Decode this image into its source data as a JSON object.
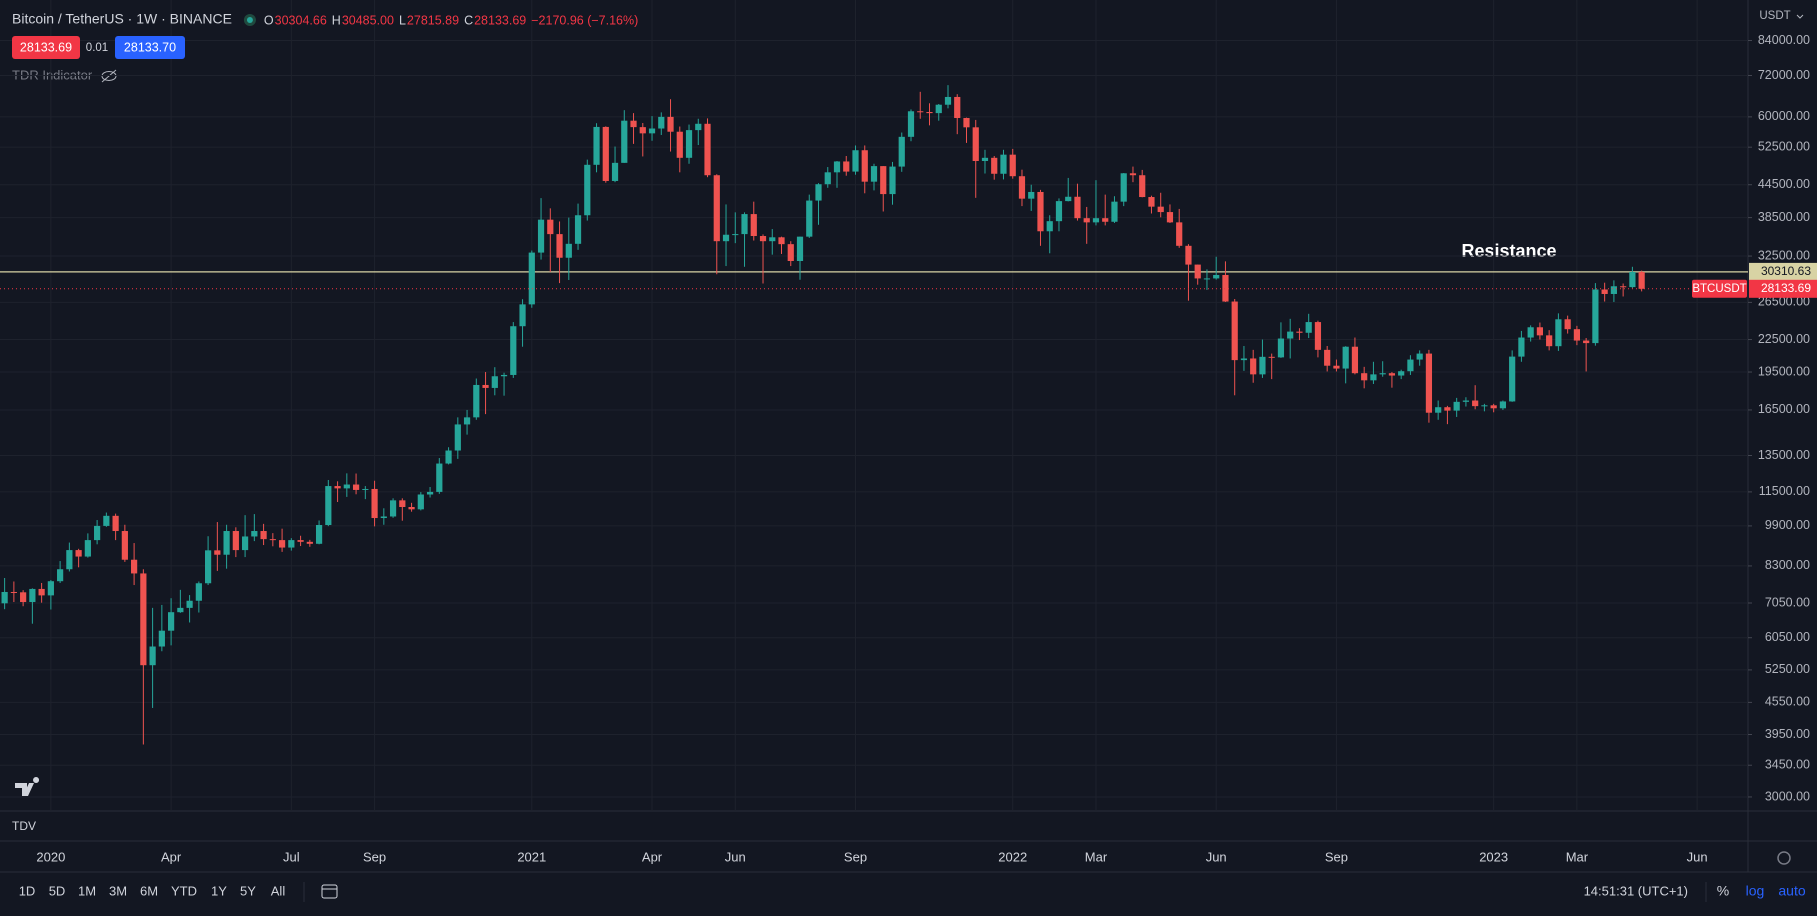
{
  "header": {
    "symbol": "Bitcoin / TetherUS · 1W · BINANCE",
    "ohlc": [
      {
        "k": "O",
        "v": "30304.66"
      },
      {
        "k": "H",
        "v": "30485.00"
      },
      {
        "k": "L",
        "v": "27815.89"
      },
      {
        "k": "C",
        "v": "28133.69"
      }
    ],
    "change": "−2170.96 (−7.16%)",
    "bid": "28133.69",
    "spread": "0.01",
    "ask": "28133.70",
    "indicator": "TDR Indicator",
    "currency": "USDT",
    "pane": "TDV"
  },
  "toolbar": {
    "ranges": [
      "1D",
      "5D",
      "1M",
      "3M",
      "6M",
      "YTD",
      "1Y",
      "5Y",
      "All"
    ],
    "time": "14:51:31 (UTC+1)",
    "scale": [
      "%",
      "log",
      "auto"
    ]
  },
  "chart_data": {
    "type": "candlestick",
    "log_scale": true,
    "grid": true,
    "up_color": "#26a69a",
    "down_color": "#ef5350",
    "annotation": "Resistance",
    "hlines": [
      {
        "value": 30310.63,
        "color": "#d8d3a4"
      }
    ],
    "last": {
      "name": "BTCUSDT",
      "value": 28133.69,
      "color": "#f23645"
    },
    "ylim": [
      2820,
      100400
    ],
    "yticks": [
      {
        "value": 84000,
        "label": "84000.00"
      },
      {
        "value": 72000,
        "label": "72000.00"
      },
      {
        "value": 60000,
        "label": "60000.00"
      },
      {
        "value": 52500,
        "label": "52500.00"
      },
      {
        "value": 44500,
        "label": "44500.00"
      },
      {
        "value": 38500,
        "label": "38500.00"
      },
      {
        "value": 32500,
        "label": "32500.00"
      },
      {
        "value": 26500,
        "label": "26500.00"
      },
      {
        "value": 22500,
        "label": "22500.00"
      },
      {
        "value": 19500,
        "label": "19500.00"
      },
      {
        "value": 16500,
        "label": "16500.00"
      },
      {
        "value": 13500,
        "label": "13500.00"
      },
      {
        "value": 11500,
        "label": "11500.00"
      },
      {
        "value": 9900,
        "label": "9900.00"
      },
      {
        "value": 8300,
        "label": "8300.00"
      },
      {
        "value": 7050,
        "label": "7050.00"
      },
      {
        "value": 6050,
        "label": "6050.00"
      },
      {
        "value": 5250,
        "label": "5250.00"
      },
      {
        "value": 4550,
        "label": "4550.00"
      },
      {
        "value": 3950,
        "label": "3950.00"
      },
      {
        "value": 3450,
        "label": "3450.00"
      },
      {
        "value": 3000,
        "label": "3000.00"
      }
    ],
    "categories": [
      null,
      null,
      null,
      null,
      null,
      "2020",
      null,
      null,
      null,
      null,
      null,
      null,
      null,
      null,
      null,
      null,
      null,
      null,
      "Apr",
      null,
      null,
      null,
      null,
      null,
      null,
      null,
      null,
      null,
      null,
      null,
      null,
      "Jul",
      null,
      null,
      null,
      null,
      null,
      null,
      null,
      null,
      "Sep",
      null,
      null,
      null,
      null,
      null,
      null,
      null,
      null,
      null,
      null,
      null,
      null,
      null,
      null,
      null,
      null,
      "2021",
      null,
      null,
      null,
      null,
      null,
      null,
      null,
      null,
      null,
      null,
      null,
      null,
      "Apr",
      null,
      null,
      null,
      null,
      null,
      null,
      null,
      null,
      "Jun",
      null,
      null,
      null,
      null,
      null,
      null,
      null,
      null,
      null,
      null,
      null,
      null,
      "Sep",
      null,
      null,
      null,
      null,
      null,
      null,
      null,
      null,
      null,
      null,
      null,
      null,
      null,
      null,
      null,
      null,
      "2022",
      null,
      null,
      null,
      null,
      null,
      null,
      null,
      null,
      "Mar",
      null,
      null,
      null,
      null,
      null,
      null,
      null,
      null,
      null,
      null,
      null,
      null,
      "Jun",
      null,
      null,
      null,
      null,
      null,
      null,
      null,
      null,
      null,
      null,
      null,
      null,
      "Sep",
      null,
      null,
      null,
      null,
      null,
      null,
      null,
      null,
      null,
      null,
      null,
      null,
      null,
      null,
      null,
      null,
      "2023",
      null,
      null,
      null,
      null,
      null,
      null,
      null,
      null,
      "Mar",
      null,
      null,
      null,
      null,
      null,
      null,
      null,
      null,
      null,
      null,
      null,
      null,
      "Jun",
      null,
      null,
      null,
      null,
      null
    ],
    "open": [
      7040,
      7400,
      7390,
      7080,
      7500,
      7290,
      7760,
      8180,
      8900,
      8650,
      9300,
      9900,
      10350,
      9680,
      8530,
      8030,
      5360,
      5820,
      6240,
      6770,
      6900,
      7120,
      7690,
      8890,
      8720,
      9680,
      8900,
      9450,
      9680,
      9340,
      9300,
      9000,
      9300,
      9230,
      9150,
      9940,
      11800,
      11680,
      11880,
      11600,
      11650,
      10250,
      10320,
      11080,
      10760,
      10650,
      11370,
      11500,
      13030,
      13800,
      15480,
      15970,
      18420,
      18180,
      19140,
      19250,
      23860,
      26270,
      33000,
      38150,
      35800,
      32260,
      34300,
      38900,
      48580,
      57400,
      45240,
      49000,
      59000,
      57350,
      55800,
      57000,
      60000,
      56200,
      50100,
      56600,
      58200,
      46400,
      34700,
      35700,
      35800,
      39100,
      35500,
      34700,
      35300,
      34250,
      31800,
      35400,
      41500,
      44600,
      47000,
      49300,
      47150,
      51800,
      45100,
      48300,
      42700,
      48200,
      54950,
      61500,
      61300,
      61000,
      63300,
      65500,
      59700,
      57300,
      49400,
      50100,
      46700,
      50800,
      46200,
      41850,
      43100,
      36250,
      37900,
      41400,
      42200,
      38400,
      37700,
      38400,
      37800,
      41300,
      46800,
      46400,
      42150,
      40400,
      39450,
      37700,
      34000,
      31300,
      29450,
      29450,
      29900,
      26600,
      20550,
      20700,
      19300,
      20850,
      20800,
      22600,
      23300,
      23180,
      24300,
      21500,
      20050,
      19800,
      21800,
      19400,
      18800,
      19300,
      19400,
      19200,
      19570,
      20600,
      21150,
      16300,
      16700,
      16450,
      17100,
      17200,
      16780,
      16840,
      16620,
      17130,
      20870,
      22700,
      23750,
      22920,
      21850,
      24600,
      23550,
      22400,
      22150,
      28050,
      27500,
      28450,
      28350,
      30304.66,
      null,
      null,
      null,
      null,
      null,
      null,
      null,
      null,
      null,
      null,
      null
    ],
    "high": [
      7870,
      7750,
      7460,
      7520,
      7700,
      7800,
      8480,
      9200,
      8950,
      9580,
      10160,
      10500,
      10450,
      9950,
      9180,
      8180,
      6900,
      6990,
      7200,
      7470,
      7300,
      7750,
      9460,
      10070,
      9950,
      9840,
      10380,
      10430,
      9990,
      9590,
      9780,
      9380,
      9480,
      9310,
      10140,
      12120,
      12050,
      12480,
      12470,
      11800,
      12080,
      10700,
      11180,
      11180,
      10960,
      11490,
      11750,
      13350,
      14000,
      15970,
      16500,
      18950,
      19500,
      19920,
      19440,
      24300,
      26870,
      33300,
      41950,
      40100,
      37850,
      38500,
      40950,
      49700,
      58350,
      57550,
      52650,
      61800,
      61000,
      58400,
      60200,
      61200,
      64850,
      57500,
      58000,
      59500,
      59600,
      46600,
      40800,
      39400,
      39400,
      41300,
      35750,
      36600,
      35400,
      34700,
      35400,
      42600,
      44800,
      48100,
      49400,
      50500,
      52900,
      52900,
      48800,
      48300,
      49200,
      56000,
      62000,
      67000,
      63700,
      63500,
      69000,
      66300,
      59800,
      59200,
      51900,
      50500,
      51900,
      52100,
      47550,
      44500,
      43500,
      38900,
      41900,
      45850,
      44700,
      40350,
      45400,
      42600,
      42300,
      46850,
      48200,
      47500,
      42400,
      42950,
      40800,
      40000,
      34250,
      31300,
      30650,
      32400,
      31750,
      26900,
      21870,
      21500,
      22500,
      21150,
      24270,
      24650,
      23650,
      25200,
      24450,
      21870,
      20600,
      21850,
      22700,
      19950,
      20400,
      20450,
      19500,
      19700,
      21000,
      21450,
      21500,
      17200,
      16800,
      17400,
      17450,
      18400,
      16950,
      16950,
      17200,
      21450,
      23370,
      23950,
      24250,
      23450,
      25250,
      25000,
      23900,
      22650,
      28850,
      28900,
      29200,
      28800,
      31000,
      30485,
      null,
      null,
      null,
      null,
      null,
      null,
      null,
      null,
      null,
      null,
      null
    ],
    "low": [
      6860,
      7080,
      6950,
      6435,
      7060,
      6850,
      7700,
      8100,
      8250,
      8610,
      9130,
      9860,
      9300,
      8450,
      7630,
      3780,
      4440,
      5700,
      5850,
      6750,
      6470,
      6760,
      7630,
      8120,
      8200,
      8630,
      8630,
      9260,
      9100,
      9050,
      8830,
      8880,
      9060,
      9030,
      9130,
      9890,
      11000,
      11250,
      11380,
      11140,
      9880,
      9950,
      10260,
      10130,
      10540,
      10600,
      11220,
      11400,
      12980,
      13300,
      14800,
      15800,
      16200,
      17600,
      17570,
      19000,
      21800,
      25880,
      32000,
      30300,
      28850,
      29250,
      33400,
      38000,
      47000,
      44900,
      45000,
      49000,
      53270,
      50400,
      54000,
      55400,
      51500,
      47000,
      48800,
      53000,
      46000,
      30000,
      31100,
      34400,
      31000,
      34800,
      28800,
      32700,
      32800,
      31100,
      29280,
      35200,
      37300,
      43900,
      43900,
      46300,
      46500,
      42850,
      43400,
      39550,
      40750,
      47100,
      53900,
      59500,
      57800,
      59000,
      62300,
      55600,
      53500,
      42000,
      46750,
      45500,
      45550,
      45700,
      40500,
      39650,
      34000,
      32900,
      36250,
      41350,
      38000,
      34300,
      37200,
      37200,
      37600,
      40500,
      45000,
      42100,
      39200,
      38550,
      37600,
      33700,
      26700,
      28650,
      28000,
      29300,
      26550,
      17600,
      19600,
      18600,
      19000,
      18900,
      20750,
      20700,
      22450,
      22650,
      20800,
      19550,
      19550,
      18550,
      19300,
      18150,
      18500,
      19100,
      18200,
      18900,
      19250,
      20050,
      15600,
      15800,
      15500,
      16000,
      16750,
      16550,
      16400,
      16330,
      16500,
      17100,
      20400,
      22300,
      22500,
      21450,
      21400,
      23100,
      21950,
      19550,
      21900,
      26600,
      26550,
      27200,
      28200,
      27815.89,
      null,
      null,
      null,
      null,
      null,
      null,
      null,
      null,
      null,
      null,
      null
    ],
    "close": [
      7400,
      7390,
      7080,
      7500,
      7290,
      7760,
      8180,
      8900,
      8650,
      9300,
      9900,
      10350,
      9680,
      8530,
      8030,
      5360,
      5820,
      6240,
      6770,
      6900,
      7120,
      7690,
      8890,
      8720,
      9680,
      8900,
      9450,
      9680,
      9340,
      9300,
      9000,
      9300,
      9230,
      9150,
      9940,
      11800,
      11680,
      11880,
      11600,
      11650,
      10250,
      10320,
      11080,
      10760,
      10650,
      11370,
      11500,
      13030,
      13800,
      15480,
      15970,
      18420,
      18180,
      19140,
      19250,
      23860,
      26270,
      33000,
      38150,
      35800,
      32260,
      34300,
      38900,
      48580,
      57400,
      45240,
      49000,
      59000,
      57350,
      55800,
      57000,
      60000,
      56200,
      50100,
      56600,
      58200,
      46400,
      34700,
      35700,
      35800,
      39100,
      35500,
      34700,
      35300,
      34250,
      31800,
      35400,
      41500,
      44600,
      47000,
      49300,
      47150,
      51800,
      45100,
      48300,
      42700,
      48200,
      54950,
      61500,
      61300,
      61000,
      63300,
      65500,
      59700,
      57300,
      49400,
      50100,
      46700,
      50800,
      46200,
      41850,
      43100,
      36250,
      37900,
      41400,
      42200,
      38400,
      37700,
      38400,
      37800,
      41300,
      46800,
      46400,
      42150,
      40400,
      39450,
      37700,
      34000,
      31300,
      29450,
      29450,
      29900,
      26600,
      20550,
      20700,
      19300,
      20850,
      20800,
      22600,
      23300,
      23180,
      24300,
      21500,
      20050,
      19800,
      21800,
      19400,
      18800,
      19300,
      19400,
      19200,
      19570,
      20600,
      21150,
      16300,
      16700,
      16450,
      17100,
      17200,
      16780,
      16840,
      16620,
      17130,
      20870,
      22700,
      23750,
      22920,
      21850,
      24600,
      23550,
      22400,
      22150,
      28050,
      27500,
      28450,
      28350,
      30304.66,
      28133.69,
      null,
      null,
      null,
      null,
      null,
      null,
      null,
      null,
      null,
      null,
      null
    ]
  }
}
